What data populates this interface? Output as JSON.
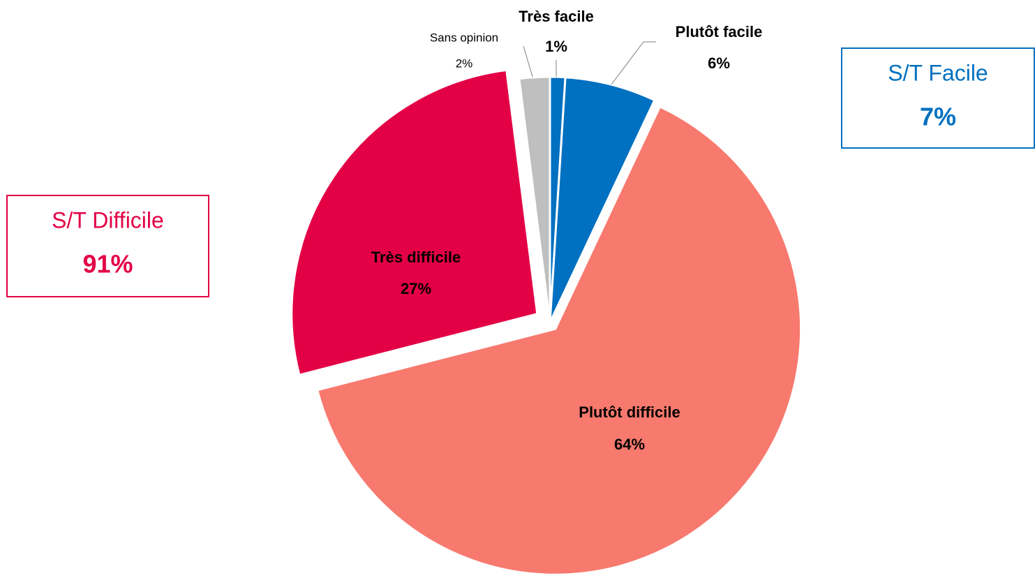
{
  "chart_data": {
    "type": "pie",
    "categories": [
      "Très facile",
      "Plutôt facile",
      "Plutôt difficile",
      "Très difficile",
      "Sans opinion"
    ],
    "values": [
      1,
      6,
      64,
      27,
      2
    ],
    "value_labels": [
      "1%",
      "6%",
      "64%",
      "27%",
      "2%"
    ],
    "colors": [
      "#0070c0",
      "#0070c0",
      "#f8796e",
      "#e30045",
      "#bfbfbf"
    ],
    "annotations": [
      {
        "label": "S/T Facile",
        "value": 7,
        "value_label": "7%",
        "color": "#0070c0"
      },
      {
        "label": "S/T Difficile",
        "value": 91,
        "value_label": "91%",
        "color": "#e30045"
      }
    ]
  }
}
